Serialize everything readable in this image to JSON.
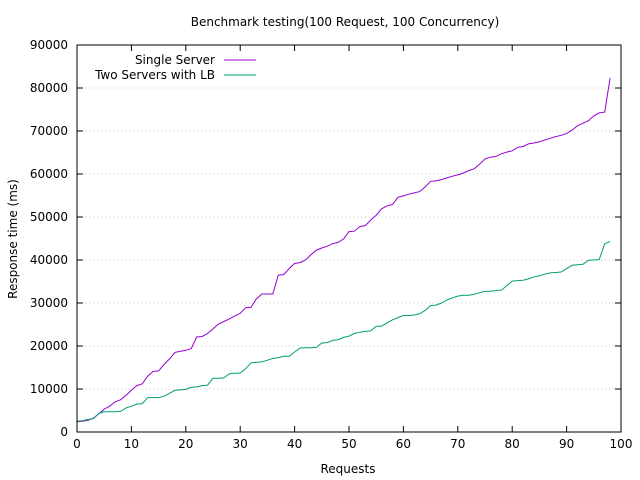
{
  "chart_data": {
    "type": "line",
    "title": "Benchmark testing(100 Request, 100 Concurrency)",
    "xlabel": "Requests",
    "ylabel": "Response time (ms)",
    "xlim": [
      0,
      100
    ],
    "ylim": [
      0,
      90000
    ],
    "x_ticks": [
      0,
      10,
      20,
      30,
      40,
      50,
      60,
      70,
      80,
      90,
      100
    ],
    "y_ticks": [
      0,
      10000,
      20000,
      30000,
      40000,
      50000,
      60000,
      70000,
      80000,
      90000
    ],
    "grid": "horizontal dotted",
    "legend_position": "top-left",
    "series": [
      {
        "name": "Single Server",
        "color": "#9400d3",
        "points": [
          [
            0,
            2400
          ],
          [
            1,
            2500
          ],
          [
            2,
            2700
          ],
          [
            3,
            3200
          ],
          [
            4,
            4200
          ],
          [
            5,
            5300
          ],
          [
            6,
            6000
          ],
          [
            7,
            7000
          ],
          [
            8,
            7500
          ],
          [
            9,
            8500
          ],
          [
            10,
            9700
          ],
          [
            11,
            10800
          ],
          [
            12,
            11200
          ],
          [
            13,
            13000
          ],
          [
            14,
            14100
          ],
          [
            15,
            14200
          ],
          [
            16,
            15700
          ],
          [
            17,
            17000
          ],
          [
            18,
            18500
          ],
          [
            19,
            18800
          ],
          [
            20,
            19000
          ],
          [
            21,
            19400
          ],
          [
            22,
            22100
          ],
          [
            23,
            22200
          ],
          [
            24,
            22900
          ],
          [
            25,
            24000
          ],
          [
            26,
            25100
          ],
          [
            27,
            25700
          ],
          [
            28,
            26300
          ],
          [
            29,
            27000
          ],
          [
            30,
            27600
          ],
          [
            31,
            28900
          ],
          [
            32,
            29000
          ],
          [
            33,
            31000
          ],
          [
            34,
            32100
          ],
          [
            35,
            32100
          ],
          [
            36,
            32100
          ],
          [
            37,
            36500
          ],
          [
            38,
            36600
          ],
          [
            39,
            38000
          ],
          [
            40,
            39200
          ],
          [
            41,
            39400
          ],
          [
            42,
            40000
          ],
          [
            43,
            41200
          ],
          [
            44,
            42300
          ],
          [
            45,
            42800
          ],
          [
            46,
            43200
          ],
          [
            47,
            43800
          ],
          [
            48,
            44100
          ],
          [
            49,
            44900
          ],
          [
            50,
            46600
          ],
          [
            51,
            46700
          ],
          [
            52,
            47800
          ],
          [
            53,
            48000
          ],
          [
            54,
            49300
          ],
          [
            55,
            50400
          ],
          [
            56,
            51900
          ],
          [
            57,
            52600
          ],
          [
            58,
            52900
          ],
          [
            59,
            54600
          ],
          [
            60,
            54900
          ],
          [
            61,
            55300
          ],
          [
            62,
            55600
          ],
          [
            63,
            55900
          ],
          [
            64,
            57000
          ],
          [
            65,
            58300
          ],
          [
            66,
            58400
          ],
          [
            67,
            58700
          ],
          [
            68,
            59100
          ],
          [
            69,
            59500
          ],
          [
            70,
            59800
          ],
          [
            71,
            60200
          ],
          [
            72,
            60800
          ],
          [
            73,
            61200
          ],
          [
            74,
            62300
          ],
          [
            75,
            63500
          ],
          [
            76,
            63900
          ],
          [
            77,
            64100
          ],
          [
            78,
            64700
          ],
          [
            79,
            65100
          ],
          [
            80,
            65400
          ],
          [
            81,
            66200
          ],
          [
            82,
            66400
          ],
          [
            83,
            67000
          ],
          [
            84,
            67200
          ],
          [
            85,
            67500
          ],
          [
            86,
            67900
          ],
          [
            87,
            68300
          ],
          [
            88,
            68700
          ],
          [
            89,
            69000
          ],
          [
            90,
            69400
          ],
          [
            91,
            70200
          ],
          [
            92,
            71200
          ],
          [
            93,
            71800
          ],
          [
            94,
            72400
          ],
          [
            95,
            73500
          ],
          [
            96,
            74200
          ],
          [
            97,
            74400
          ],
          [
            98,
            82300
          ]
        ]
      },
      {
        "name": "Two Servers with LB",
        "color": "#009e73",
        "points": [
          [
            0,
            2500
          ],
          [
            1,
            2600
          ],
          [
            2,
            2900
          ],
          [
            3,
            3100
          ],
          [
            4,
            4300
          ],
          [
            5,
            4700
          ],
          [
            6,
            4700
          ],
          [
            7,
            4700
          ],
          [
            8,
            4800
          ],
          [
            9,
            5600
          ],
          [
            10,
            6000
          ],
          [
            11,
            6500
          ],
          [
            12,
            6600
          ],
          [
            13,
            8000
          ],
          [
            14,
            8000
          ],
          [
            15,
            8000
          ],
          [
            16,
            8300
          ],
          [
            17,
            9000
          ],
          [
            18,
            9700
          ],
          [
            19,
            9800
          ],
          [
            20,
            9900
          ],
          [
            21,
            10400
          ],
          [
            22,
            10500
          ],
          [
            23,
            10800
          ],
          [
            24,
            10900
          ],
          [
            25,
            12500
          ],
          [
            26,
            12500
          ],
          [
            27,
            12600
          ],
          [
            28,
            13500
          ],
          [
            29,
            13700
          ],
          [
            30,
            13700
          ],
          [
            31,
            14700
          ],
          [
            32,
            16100
          ],
          [
            33,
            16200
          ],
          [
            34,
            16300
          ],
          [
            35,
            16700
          ],
          [
            36,
            17100
          ],
          [
            37,
            17300
          ],
          [
            38,
            17600
          ],
          [
            39,
            17600
          ],
          [
            40,
            18600
          ],
          [
            41,
            19500
          ],
          [
            42,
            19600
          ],
          [
            43,
            19600
          ],
          [
            44,
            19700
          ],
          [
            45,
            20700
          ],
          [
            46,
            20800
          ],
          [
            47,
            21300
          ],
          [
            48,
            21500
          ],
          [
            49,
            22000
          ],
          [
            50,
            22300
          ],
          [
            51,
            22900
          ],
          [
            52,
            23200
          ],
          [
            53,
            23400
          ],
          [
            54,
            23500
          ],
          [
            55,
            24600
          ],
          [
            56,
            24600
          ],
          [
            57,
            25400
          ],
          [
            58,
            26100
          ],
          [
            59,
            26600
          ],
          [
            60,
            27100
          ],
          [
            61,
            27100
          ],
          [
            62,
            27200
          ],
          [
            63,
            27500
          ],
          [
            64,
            28300
          ],
          [
            65,
            29400
          ],
          [
            66,
            29500
          ],
          [
            67,
            30000
          ],
          [
            68,
            30700
          ],
          [
            69,
            31200
          ],
          [
            70,
            31600
          ],
          [
            71,
            31800
          ],
          [
            72,
            31800
          ],
          [
            73,
            32000
          ],
          [
            74,
            32400
          ],
          [
            75,
            32700
          ],
          [
            76,
            32700
          ],
          [
            77,
            32900
          ],
          [
            78,
            33000
          ],
          [
            79,
            34000
          ],
          [
            80,
            35100
          ],
          [
            81,
            35200
          ],
          [
            82,
            35300
          ],
          [
            83,
            35600
          ],
          [
            84,
            36100
          ],
          [
            85,
            36300
          ],
          [
            86,
            36700
          ],
          [
            87,
            37000
          ],
          [
            88,
            37100
          ],
          [
            89,
            37200
          ],
          [
            90,
            38000
          ],
          [
            91,
            38800
          ],
          [
            92,
            38900
          ],
          [
            93,
            39000
          ],
          [
            94,
            39900
          ],
          [
            95,
            40000
          ],
          [
            96,
            40100
          ],
          [
            97,
            43800
          ],
          [
            98,
            44300
          ]
        ]
      }
    ]
  }
}
